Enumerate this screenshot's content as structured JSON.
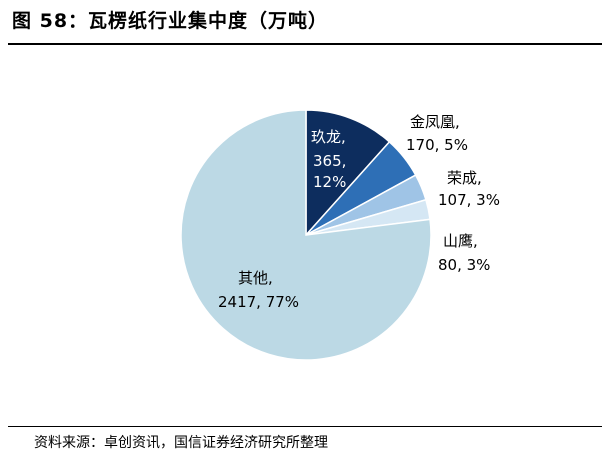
{
  "header": {
    "title": "图 58：瓦楞纸行业集中度（万吨）"
  },
  "footer": {
    "source": "资料来源：卓创资讯，国信证券经济研究所整理"
  },
  "colors": {
    "jiulong": "#0d2d5e",
    "jinfenghuang": "#2e6fb6",
    "rongcheng": "#9fc4e6",
    "shanying": "#d5e7f4",
    "qita": "#bcd9e5"
  },
  "chart_data": {
    "type": "pie",
    "title": "瓦楞纸行业集中度（万吨）",
    "unit": "万吨",
    "slices": [
      {
        "name": "玖龙",
        "value": 365,
        "percent": "12%",
        "label_name": "玖龙,",
        "label_value": "365,",
        "label_pct": "12%"
      },
      {
        "name": "金凤凰",
        "value": 170,
        "percent": "5%",
        "label_name": "金凤凰,",
        "label_value": "170, 5%"
      },
      {
        "name": "荣成",
        "value": 107,
        "percent": "3%",
        "label_name": "荣成,",
        "label_value": "107, 3%"
      },
      {
        "name": "山鹰",
        "value": 80,
        "percent": "3%",
        "label_name": "山鹰,",
        "label_value": "80, 3%"
      },
      {
        "name": "其他",
        "value": 2417,
        "percent": "77%",
        "label_name": "其他,",
        "label_value": "2417, 77%"
      }
    ]
  }
}
